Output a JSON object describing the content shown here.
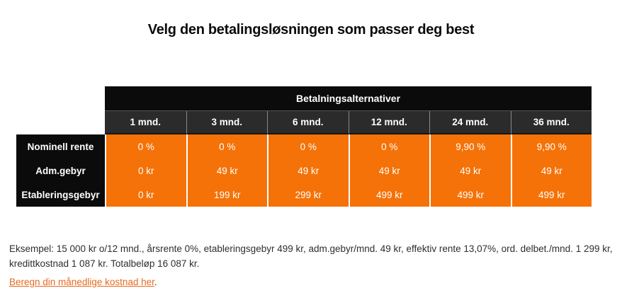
{
  "page": {
    "title": "Velg den betalingsløsningen som passer deg best"
  },
  "table": {
    "header": "Betalningsalternativer",
    "columns": [
      "1 mnd.",
      "3 mnd.",
      "6 mnd.",
      "12 mnd.",
      "24 mnd.",
      "36 mnd."
    ],
    "rows": [
      {
        "label": "Nominell rente",
        "values": [
          "0 %",
          "0 %",
          "0 %",
          "0 %",
          "9,90 %",
          "9,90 %"
        ]
      },
      {
        "label": "Adm.gebyr",
        "values": [
          "0 kr",
          "49 kr",
          "49 kr",
          "49 kr",
          "49 kr",
          "49 kr"
        ]
      },
      {
        "label": "Etableringsgebyr",
        "values": [
          "0 kr",
          "199 kr",
          "299 kr",
          "499 kr",
          "499 kr",
          "499 kr"
        ]
      }
    ]
  },
  "footer": {
    "example_line1": "Eksempel: 15 000 kr o/12 mnd., årsrente 0%, etableringsgebyr 499 kr, adm.gebyr/mnd. 49 kr, effektiv rente 13,07%, ord. delbet./mnd. 1 299 kr,",
    "example_line2": "kredittkostnad 1 087 kr. Totalbeløp 16 087 kr.",
    "link_text": "Beregn din månedlige kostnad her",
    "link_suffix": "."
  },
  "colors": {
    "accent_orange": "#f47208",
    "header_black": "#0b0b0b",
    "subheader_gray": "#2b2b2b",
    "link_orange": "#e8691d"
  }
}
